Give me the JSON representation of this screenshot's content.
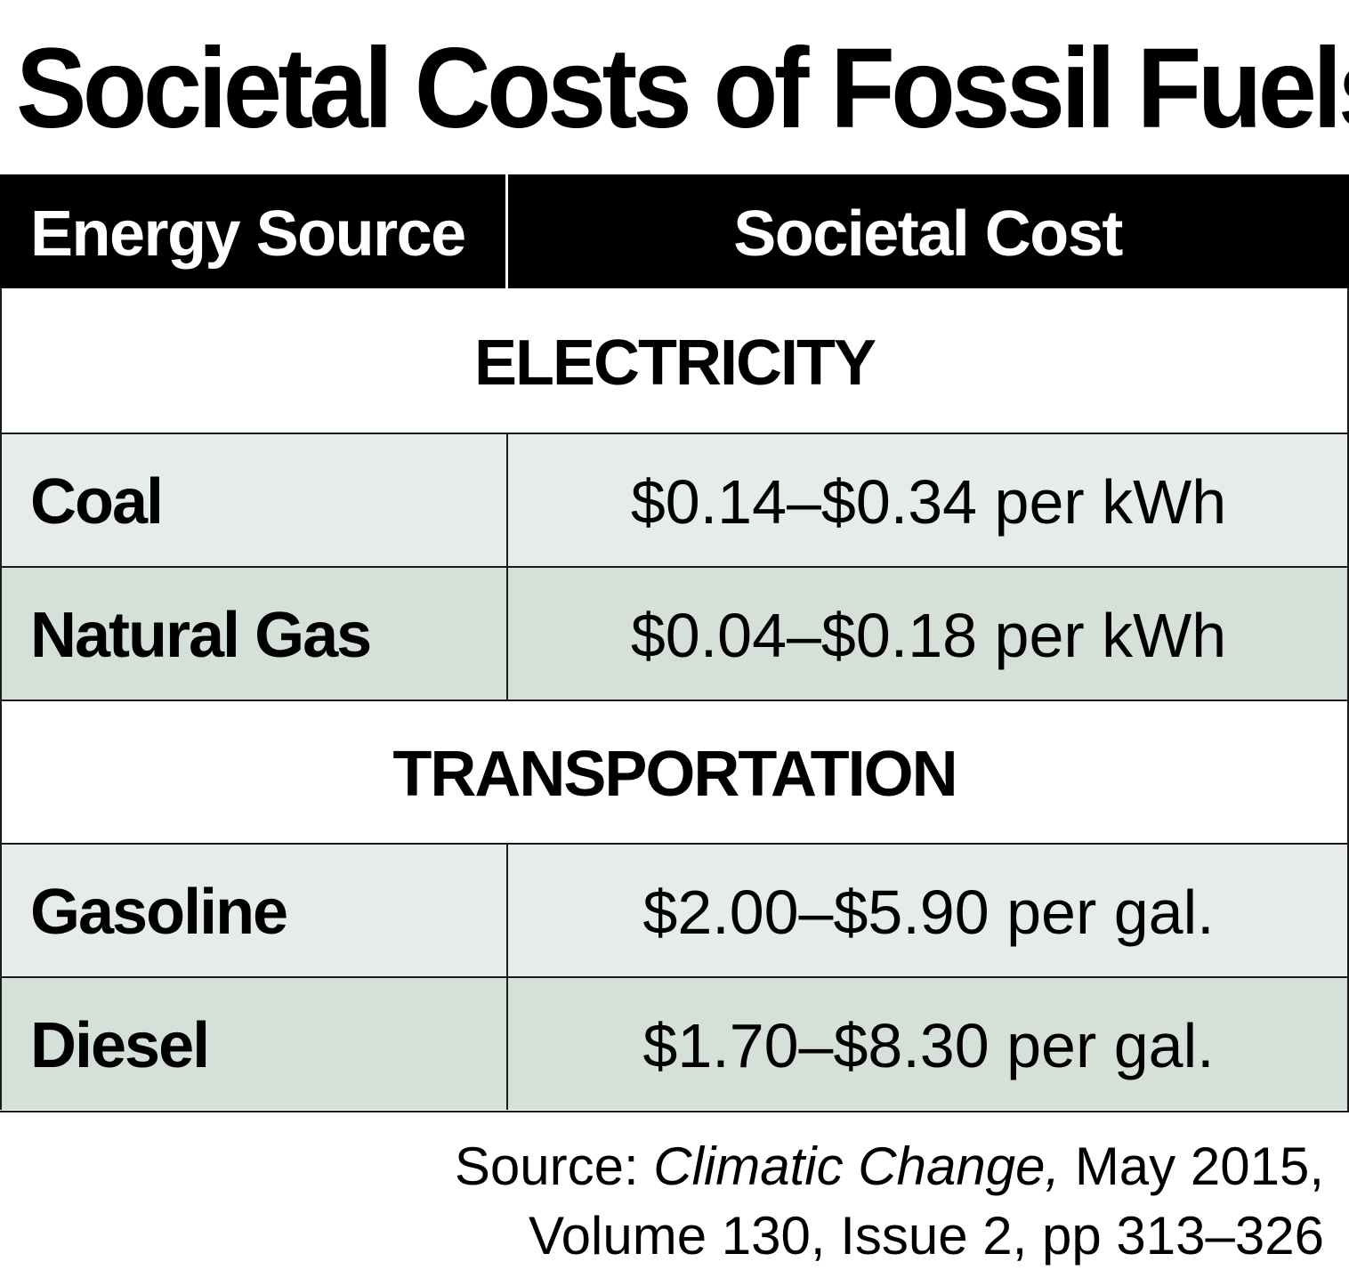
{
  "title": "Societal Costs of Fossil Fuels",
  "table": {
    "headers": [
      "Energy Source",
      "Societal Cost"
    ],
    "sections": [
      {
        "label": "ELECTRICITY",
        "rows": [
          {
            "source": "Coal",
            "cost": "$0.14–$0.34 per kWh"
          },
          {
            "source": "Natural Gas",
            "cost": "$0.04–$0.18 per kWh"
          }
        ]
      },
      {
        "label": "TRANSPORTATION",
        "rows": [
          {
            "source": "Gasoline",
            "cost": "$2.00–$5.90 per gal."
          },
          {
            "source": "Diesel",
            "cost": "$1.70–$8.30 per gal."
          }
        ]
      }
    ]
  },
  "source": {
    "prefix": "Source: ",
    "journal": "Climatic Change,",
    "line1_suffix": " May 2015,",
    "line2": "Volume 130, Issue 2, pp 313–326"
  },
  "colors": {
    "header_bg": "#000000",
    "row_light": "#e6ece8",
    "row_dark": "#d5e0d8"
  }
}
